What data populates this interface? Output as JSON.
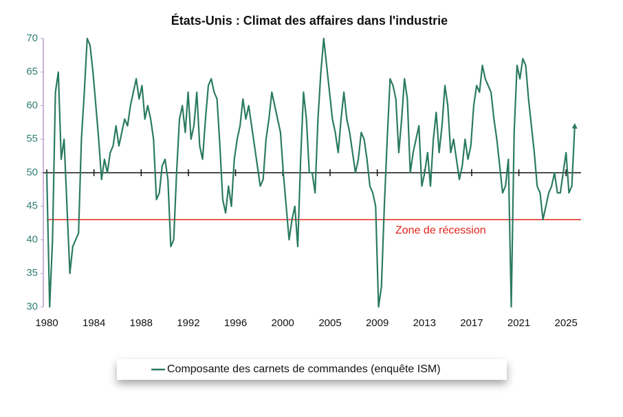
{
  "chart_data": {
    "type": "line",
    "title": "États-Unis : Climat des affaires dans l'industrie",
    "x": [
      1980,
      1980.25,
      1980.5,
      1980.75,
      1981,
      1981.25,
      1981.5,
      1981.75,
      1982,
      1982.25,
      1982.5,
      1982.75,
      1983,
      1983.25,
      1983.5,
      1983.75,
      1984,
      1984.25,
      1984.5,
      1984.75,
      1985,
      1985.25,
      1985.5,
      1985.75,
      1986,
      1986.25,
      1986.5,
      1986.75,
      1987,
      1987.25,
      1987.5,
      1987.75,
      1988,
      1988.25,
      1988.5,
      1988.75,
      1989,
      1989.25,
      1989.5,
      1989.75,
      1990,
      1990.25,
      1990.5,
      1990.75,
      1991,
      1991.25,
      1991.5,
      1991.75,
      1992,
      1992.25,
      1992.5,
      1992.75,
      1993,
      1993.25,
      1993.5,
      1993.75,
      1994,
      1994.25,
      1994.5,
      1994.75,
      1995,
      1995.25,
      1995.5,
      1995.75,
      1996,
      1996.25,
      1996.5,
      1996.75,
      1997,
      1997.25,
      1997.5,
      1997.75,
      1998,
      1998.25,
      1998.5,
      1998.75,
      1999,
      1999.25,
      1999.5,
      1999.75,
      2000,
      2000.25,
      2000.5,
      2000.75,
      2001,
      2001.25,
      2001.5,
      2001.75,
      2002,
      2002.25,
      2002.5,
      2002.75,
      2003,
      2003.25,
      2003.5,
      2003.75,
      2004,
      2004.25,
      2004.5,
      2004.75,
      2005,
      2005.25,
      2005.5,
      2005.75,
      2006,
      2006.25,
      2006.5,
      2006.75,
      2007,
      2007.25,
      2007.5,
      2007.75,
      2008,
      2008.25,
      2008.5,
      2008.75,
      2009,
      2009.25,
      2009.5,
      2009.75,
      2010,
      2010.25,
      2010.5,
      2010.75,
      2011,
      2011.25,
      2011.5,
      2011.75,
      2012,
      2012.25,
      2012.5,
      2012.75,
      2013,
      2013.25,
      2013.5,
      2013.75,
      2014,
      2014.25,
      2014.5,
      2014.75,
      2015,
      2015.25,
      2015.5,
      2015.75,
      2016,
      2016.25,
      2016.5,
      2016.75,
      2017,
      2017.25,
      2017.5,
      2017.75,
      2018,
      2018.25,
      2018.5,
      2018.75,
      2019,
      2019.25,
      2019.5,
      2019.75,
      2020,
      2020.25,
      2020.5,
      2020.75,
      2021,
      2021.25,
      2021.5,
      2021.75,
      2022,
      2022.25,
      2022.5,
      2022.75,
      2023,
      2023.25,
      2023.5,
      2023.75,
      2024,
      2024.25,
      2024.5,
      2024.75,
      2025,
      2025.25,
      2025.5,
      2025.75
    ],
    "series": [
      {
        "name": "Composante des carnets de commandes (enquête ISM)",
        "color": "#2a7a62",
        "values": [
          50,
          30,
          40,
          62,
          65,
          52,
          55,
          45,
          35,
          39,
          40,
          41,
          55,
          62,
          70,
          69,
          65,
          60,
          55,
          49,
          52,
          50,
          53,
          54,
          57,
          54,
          56,
          58,
          57,
          60,
          62,
          64,
          61,
          63,
          58,
          60,
          58,
          55,
          46,
          47,
          51,
          52,
          49,
          39,
          40,
          50,
          58,
          60,
          56,
          62,
          55,
          57,
          62,
          54,
          52,
          58,
          63,
          64,
          62,
          61,
          54,
          46,
          44,
          48,
          45,
          52,
          55,
          57,
          61,
          58,
          60,
          57,
          54,
          51,
          48,
          49,
          55,
          58,
          62,
          60,
          58,
          56,
          50,
          45,
          40,
          43,
          45,
          39,
          52,
          62,
          58,
          50,
          50,
          47,
          58,
          65,
          70,
          66,
          62,
          58,
          56,
          53,
          58,
          62,
          58,
          56,
          53,
          50,
          52,
          56,
          55,
          52,
          48,
          47,
          45,
          30,
          33,
          45,
          55,
          64,
          63,
          61,
          53,
          58,
          64,
          61,
          50,
          53,
          55,
          57,
          48,
          50,
          53,
          48,
          55,
          59,
          53,
          57,
          63,
          60,
          53,
          55,
          52,
          49,
          51,
          55,
          52,
          54,
          60,
          63,
          62,
          66,
          64,
          63,
          62,
          58,
          55,
          51,
          47,
          48,
          52,
          30,
          56,
          66,
          64,
          67,
          66,
          61,
          57,
          53,
          48,
          47,
          43,
          45,
          47,
          48,
          50,
          47,
          47,
          50,
          53,
          47,
          48,
          57
        ]
      }
    ],
    "xlim": [
      1979.7,
      2026.3
    ],
    "xticks": [
      1980,
      {
        "value": 1984.09,
        "label": "1984"
      },
      {
        "value": 1988.18,
        "label": "1988"
      },
      {
        "value": 1992.27,
        "label": "1992"
      },
      {
        "value": 1996.36,
        "label": "1996"
      },
      {
        "value": 2000.45,
        "label": "2000"
      },
      {
        "value": 2004.55,
        "label": "2005"
      },
      {
        "value": 2008.64,
        "label": "2009"
      },
      {
        "value": 2012.73,
        "label": "2013"
      },
      {
        "value": 2016.82,
        "label": "2017"
      },
      {
        "value": 2020.91,
        "label": "2021"
      },
      2025
    ],
    "ylim": [
      30,
      70
    ],
    "yticks": [
      30,
      35,
      40,
      45,
      50,
      55,
      60,
      65,
      70
    ],
    "reference_lines": [
      {
        "value": 50,
        "color": "#111111"
      },
      {
        "value": 43,
        "color": "#e2231a",
        "label": "Zone de récession"
      }
    ]
  }
}
